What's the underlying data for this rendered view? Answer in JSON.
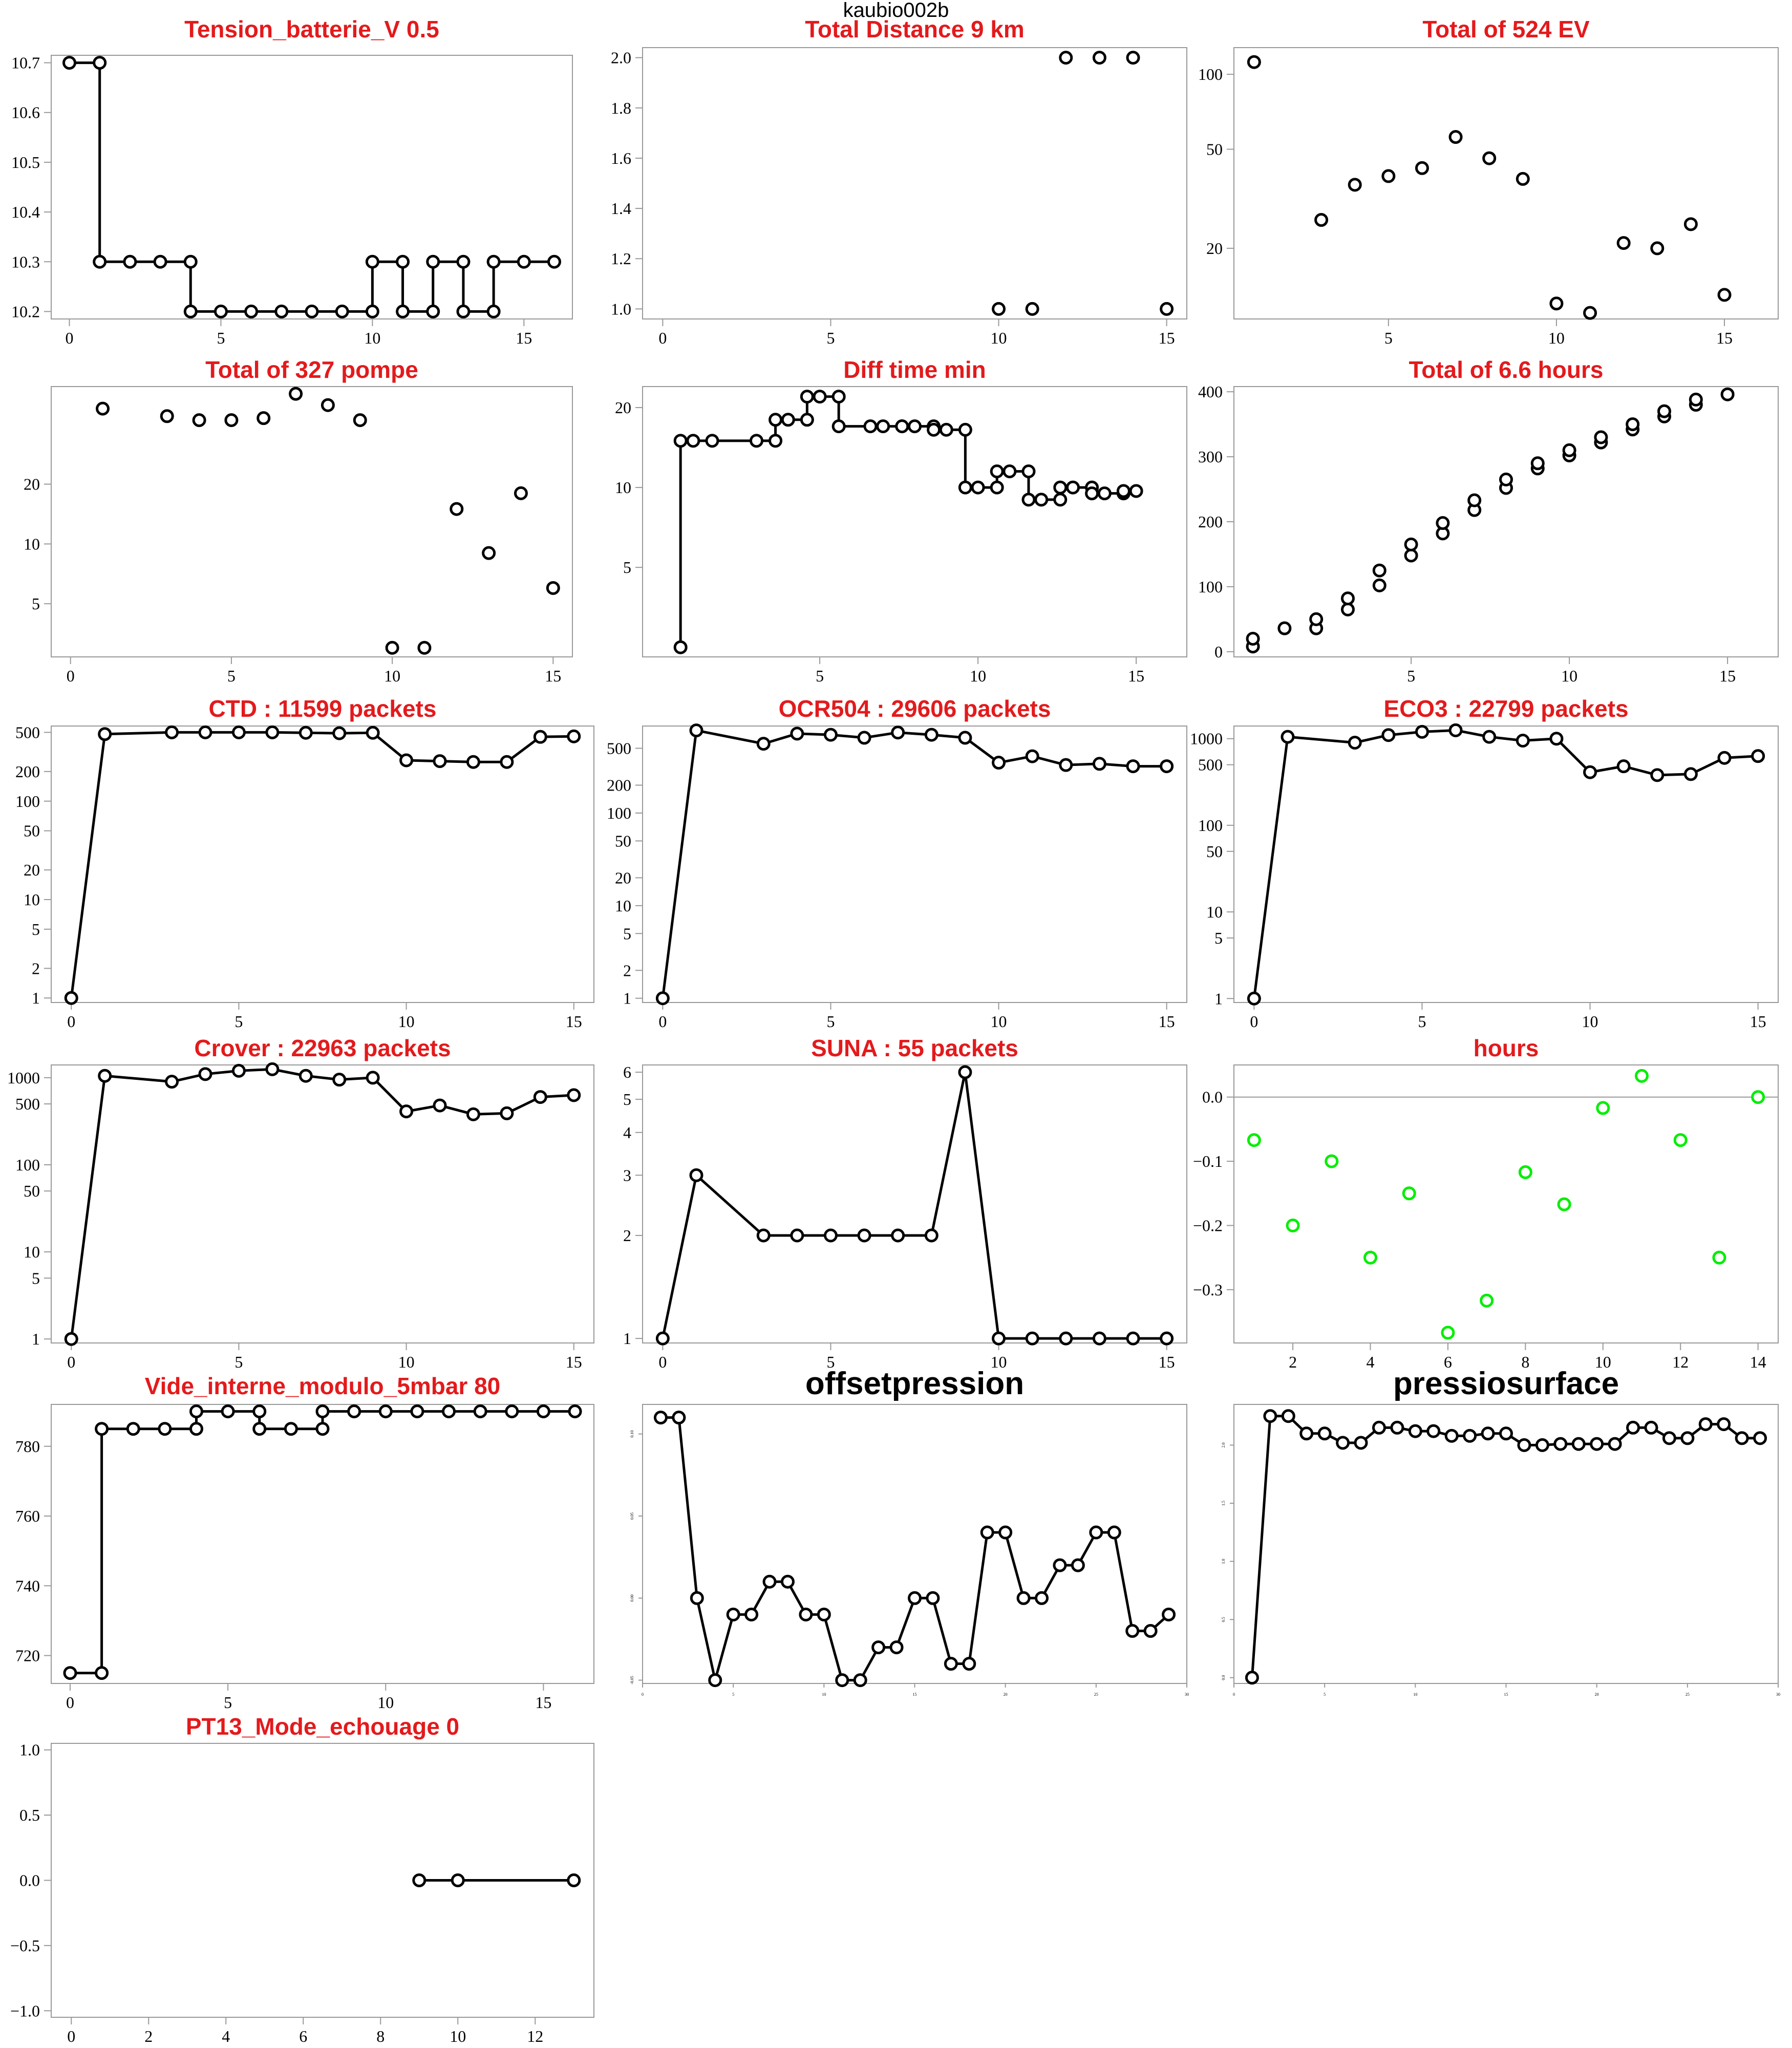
{
  "page": {
    "title": "kaubio002b"
  },
  "chart_data": [
    {
      "title": "Tension_batterie_V 0.5",
      "title_color": "#e31a1c",
      "type": "line",
      "line_style": "step",
      "x": [
        0,
        1,
        1,
        2,
        3,
        4,
        4,
        5,
        6,
        7,
        8,
        9,
        10,
        10,
        11,
        11,
        12,
        12,
        13,
        13,
        14,
        14,
        15,
        16
      ],
      "y": [
        10.7,
        10.7,
        10.3,
        10.3,
        10.3,
        10.3,
        10.2,
        10.2,
        10.2,
        10.2,
        10.2,
        10.2,
        10.2,
        10.3,
        10.3,
        10.2,
        10.2,
        10.3,
        10.3,
        10.2,
        10.2,
        10.3,
        10.3,
        10.3
      ],
      "xlim": [
        -0.6,
        16.6
      ],
      "ylim": [
        10.185,
        10.715
      ],
      "xticks": [
        0,
        5,
        10,
        15
      ],
      "yticks": [
        10.2,
        10.3,
        10.4,
        10.5,
        10.6,
        10.7
      ],
      "yticklabels": [
        "10.2",
        "10.3",
        "10.4",
        "10.5",
        "10.6",
        "10.7"
      ]
    },
    {
      "title": "Total Distance  9  km",
      "title_color": "#e31a1c",
      "type": "scatter",
      "x": [
        10,
        11,
        12,
        13,
        14,
        15
      ],
      "y": [
        1,
        1,
        2,
        2,
        2,
        1
      ],
      "xlim": [
        -0.6,
        15.6
      ],
      "ylim": [
        0.96,
        2.04
      ],
      "xticks": [
        0,
        5,
        10,
        15
      ],
      "yticks": [
        1.0,
        1.2,
        1.4,
        1.6,
        1.8,
        2.0
      ],
      "yticklabels": [
        "1.0",
        "1.2",
        "1.4",
        "1.6",
        "1.8",
        "2.0"
      ]
    },
    {
      "title": "Total of  524  EV",
      "title_color": "#e31a1c",
      "type": "scatter",
      "yscale": "log",
      "x": [
        1,
        3,
        4,
        5,
        6,
        7,
        8,
        9,
        10,
        11,
        12,
        13,
        14,
        15
      ],
      "y": [
        112,
        26,
        36,
        39,
        42,
        56,
        46,
        38,
        12,
        11,
        21,
        20,
        25,
        13
      ],
      "xlim": [
        0.4,
        16.6
      ],
      "ylim": [
        10.4,
        128
      ],
      "xticks": [
        5,
        10,
        15
      ],
      "yticks": [
        20,
        50,
        100
      ],
      "yticklabels": [
        "20",
        "50",
        "100"
      ]
    },
    {
      "title": "Total of  327  pompe",
      "title_color": "#e31a1c",
      "type": "scatter",
      "yscale": "log",
      "x": [
        1,
        3,
        4,
        5,
        6,
        7,
        8,
        9,
        10,
        11,
        12,
        13,
        14,
        15
      ],
      "y": [
        48,
        44,
        42,
        42,
        43,
        57,
        50,
        42,
        3,
        3,
        15,
        9,
        18,
        6
      ],
      "xlim": [
        -0.6,
        15.6
      ],
      "ylim": [
        2.7,
        62
      ],
      "xticks": [
        0,
        5,
        10,
        15
      ],
      "yticks": [
        5,
        10,
        20
      ],
      "yticklabels": [
        "5",
        "10",
        "20"
      ]
    },
    {
      "title": "Diff time min",
      "title_color": "#e31a1c",
      "type": "line",
      "line_style": "step",
      "yscale": "log",
      "x": [
        0.6,
        0.6,
        1,
        1.6,
        3,
        3.6,
        3.6,
        4,
        4.6,
        4.6,
        5,
        5.6,
        5.6,
        6.6,
        7,
        7.6,
        7.6,
        8,
        8.6,
        8.6,
        9,
        9.6,
        9.6,
        10,
        10.6,
        10.6,
        11,
        11.6,
        11.6,
        12,
        12.6,
        12.6,
        13,
        13.6,
        13.6,
        14,
        14.6,
        14.6,
        15
      ],
      "y": [
        2.5,
        15,
        15,
        15,
        15,
        15,
        18,
        18,
        18,
        22,
        22,
        22,
        17,
        17,
        17,
        17,
        17,
        17,
        17,
        16.5,
        16.5,
        16.5,
        10,
        10,
        10,
        11.5,
        11.5,
        11.5,
        9,
        9,
        9,
        10,
        10,
        10,
        9.5,
        9.5,
        9.5,
        9.7,
        9.7
      ],
      "xlim": [
        -0.6,
        16.6
      ],
      "ylim": [
        2.3,
        24
      ],
      "xticks": [
        5,
        10,
        15
      ],
      "yticks": [
        5,
        10,
        20
      ],
      "yticklabels": [
        "5",
        "10",
        "20"
      ]
    },
    {
      "title": "Total of  6.6  hours",
      "title_color": "#e31a1c",
      "type": "scatter",
      "x": [
        0,
        0,
        1,
        2,
        2,
        3,
        3,
        4,
        4,
        5,
        5,
        6,
        6,
        7,
        7,
        8,
        8,
        9,
        9,
        10,
        10,
        11,
        11,
        12,
        12,
        13,
        13,
        14,
        14,
        15
      ],
      "y": [
        8,
        20,
        36,
        36,
        50,
        65,
        82,
        102,
        125,
        148,
        165,
        182,
        198,
        218,
        233,
        252,
        265,
        282,
        290,
        302,
        310,
        322,
        330,
        342,
        350,
        362,
        370,
        380,
        388,
        396
      ],
      "xlim": [
        -0.6,
        16.6
      ],
      "ylim": [
        -8,
        408
      ],
      "xticks": [
        5,
        10,
        15
      ],
      "yticks": [
        0,
        100,
        200,
        300,
        400
      ],
      "yticklabels": [
        "0",
        "100",
        "200",
        "300",
        "400"
      ]
    },
    {
      "title": "CTD  : 11599  packets",
      "title_color": "#e31a1c",
      "type": "line",
      "yscale": "log",
      "x": [
        0,
        1,
        3,
        4,
        5,
        6,
        7,
        8,
        9,
        10,
        11,
        12,
        13,
        14,
        15
      ],
      "y": [
        1,
        480,
        500,
        500,
        500,
        500,
        495,
        490,
        495,
        260,
        255,
        250,
        250,
        450,
        455
      ],
      "xlim": [
        -0.6,
        15.6
      ],
      "ylim": [
        0.9,
        580
      ],
      "xticks": [
        0,
        5,
        10,
        15
      ],
      "yticks": [
        1,
        2,
        5,
        10,
        20,
        50,
        100,
        200,
        500
      ],
      "yticklabels": [
        "1",
        "2",
        "5",
        "10",
        "20",
        "50",
        "100",
        "200",
        "500"
      ]
    },
    {
      "title": "OCR504  : 29606  packets",
      "title_color": "#e31a1c",
      "type": "line",
      "yscale": "log",
      "x": [
        0,
        1,
        3,
        4,
        5,
        6,
        7,
        8,
        9,
        10,
        11,
        12,
        13,
        14,
        15
      ],
      "y": [
        1,
        780,
        560,
        720,
        700,
        650,
        740,
        700,
        650,
        350,
        410,
        330,
        340,
        320,
        320
      ],
      "xlim": [
        -0.6,
        15.6
      ],
      "ylim": [
        0.9,
        870
      ],
      "xticks": [
        0,
        5,
        10,
        15
      ],
      "yticks": [
        1,
        2,
        5,
        10,
        20,
        50,
        100,
        200,
        500
      ],
      "yticklabels": [
        "1",
        "2",
        "5",
        "10",
        "20",
        "50",
        "100",
        "200",
        "500"
      ]
    },
    {
      "title": "ECO3  : 22799  packets",
      "title_color": "#e31a1c",
      "type": "line",
      "yscale": "log",
      "x": [
        0,
        1,
        3,
        4,
        5,
        6,
        7,
        8,
        9,
        10,
        11,
        12,
        13,
        14,
        15
      ],
      "y": [
        1,
        1050,
        900,
        1100,
        1200,
        1250,
        1050,
        950,
        1000,
        410,
        480,
        380,
        390,
        600,
        630
      ],
      "xlim": [
        -0.6,
        15.6
      ],
      "ylim": [
        0.9,
        1400
      ],
      "xticks": [
        0,
        5,
        10,
        15
      ],
      "yticks": [
        1,
        5,
        10,
        50,
        100,
        500,
        1000
      ],
      "yticklabels": [
        "1",
        "5",
        "10",
        "50",
        "100",
        "500",
        "1000"
      ]
    },
    {
      "title": "Crover  : 22963  packets",
      "title_color": "#e31a1c",
      "type": "line",
      "yscale": "log",
      "x": [
        0,
        1,
        3,
        4,
        5,
        6,
        7,
        8,
        9,
        10,
        11,
        12,
        13,
        14,
        15
      ],
      "y": [
        1,
        1050,
        900,
        1100,
        1200,
        1250,
        1050,
        950,
        1000,
        410,
        480,
        380,
        390,
        600,
        630
      ],
      "xlim": [
        -0.6,
        15.6
      ],
      "ylim": [
        0.9,
        1400
      ],
      "xticks": [
        0,
        5,
        10,
        15
      ],
      "yticks": [
        1,
        5,
        10,
        50,
        100,
        500,
        1000
      ],
      "yticklabels": [
        "1",
        "5",
        "10",
        "50",
        "100",
        "500",
        "1000"
      ]
    },
    {
      "title": "SUNA  : 55  packets",
      "title_color": "#e31a1c",
      "type": "line",
      "yscale": "log",
      "x": [
        0,
        1,
        3,
        4,
        5,
        6,
        7,
        8,
        9,
        10,
        11,
        12,
        13,
        14,
        15
      ],
      "y": [
        1,
        3,
        2,
        2,
        2,
        2,
        2,
        2,
        6,
        1,
        1,
        1,
        1,
        1,
        1
      ],
      "xlim": [
        -0.6,
        15.6
      ],
      "ylim": [
        0.97,
        6.3
      ],
      "xticks": [
        0,
        5,
        10,
        15
      ],
      "yticks": [
        1,
        2,
        3,
        4,
        5,
        6
      ],
      "yticklabels": [
        "1",
        "2",
        "3",
        "4",
        "5",
        "6"
      ]
    },
    {
      "title": "hours",
      "title_color": "#e31a1c",
      "type": "scatter",
      "point_color": "#00ee00",
      "hline": 0,
      "x": [
        1,
        2,
        3,
        4,
        5,
        6,
        7,
        8,
        9,
        10,
        11,
        12,
        13,
        14
      ],
      "y": [
        -0.067,
        -0.2,
        -0.1,
        -0.25,
        -0.15,
        -0.367,
        -0.317,
        -0.117,
        -0.167,
        -0.017,
        0.033,
        -0.067,
        -0.25,
        0
      ],
      "xlim": [
        0.48,
        14.52
      ],
      "ylim": [
        -0.383,
        0.05
      ],
      "xticks": [
        2,
        4,
        6,
        8,
        10,
        12,
        14
      ],
      "yticks": [
        -0.3,
        -0.2,
        -0.1,
        0.0
      ],
      "yticklabels": [
        "−0.3",
        "−0.2",
        "−0.1",
        "0.0"
      ]
    },
    {
      "title": "Vide_interne_modulo_5mbar 80",
      "title_color": "#e31a1c",
      "type": "line",
      "line_style": "step",
      "x": [
        0,
        1,
        1,
        2,
        3,
        4,
        4,
        5,
        6,
        6,
        7,
        8,
        8,
        9,
        10,
        11,
        12,
        13,
        14,
        15,
        16
      ],
      "y": [
        715,
        715,
        785,
        785,
        785,
        785,
        790,
        790,
        790,
        785,
        785,
        785,
        790,
        790,
        790,
        790,
        790,
        790,
        790,
        790,
        790
      ],
      "xlim": [
        -0.6,
        16.6
      ],
      "ylim": [
        712,
        792
      ],
      "xticks": [
        0,
        5,
        10,
        15
      ],
      "yticks": [
        720,
        740,
        760,
        780
      ],
      "yticklabels": [
        "720",
        "740",
        "760",
        "780"
      ]
    },
    {
      "title": "offsetpression",
      "title_color": "#000000",
      "type": "line",
      "small_ticks": true,
      "x": [
        1,
        2,
        3,
        4,
        5,
        6,
        7,
        8,
        9,
        10,
        11,
        12,
        13,
        14,
        15,
        16,
        17,
        18,
        19,
        20,
        21,
        22,
        23,
        24,
        25,
        26,
        27,
        28,
        29
      ],
      "y": [
        0.11,
        0.11,
        0,
        -0.05,
        -0.01,
        -0.01,
        0.01,
        0.01,
        -0.01,
        -0.01,
        -0.05,
        -0.05,
        -0.03,
        -0.03,
        0,
        0,
        -0.04,
        -0.04,
        0.04,
        0.04,
        0,
        0,
        0.02,
        0.02,
        0.04,
        0.04,
        -0.02,
        -0.02,
        -0.01
      ],
      "xlim": [
        0,
        30
      ],
      "ylim": [
        -0.052,
        0.118
      ],
      "xticks": [
        0,
        5,
        10,
        15,
        20,
        25,
        30
      ],
      "yticks": [
        -0.05,
        0,
        0.05,
        0.1
      ],
      "yticklabels": [
        "-0.05",
        "0.00",
        "0.05",
        "0.10"
      ]
    },
    {
      "title": "pressiosurface",
      "title_color": "#000000",
      "type": "line",
      "small_ticks": true,
      "x": [
        1,
        2,
        3,
        4,
        5,
        6,
        7,
        8,
        9,
        10,
        11,
        12,
        13,
        14,
        15,
        16,
        17,
        18,
        19,
        20,
        21,
        22,
        23,
        24,
        25,
        26,
        27,
        28,
        29
      ],
      "y": [
        0,
        2.25,
        2.25,
        2.1,
        2.1,
        2.02,
        2.02,
        2.15,
        2.15,
        2.12,
        2.12,
        2.08,
        2.08,
        2.1,
        2.1,
        2.0,
        2.0,
        2.01,
        2.01,
        2.01,
        2.01,
        2.15,
        2.15,
        2.06,
        2.06,
        2.18,
        2.18,
        2.06,
        2.06
      ],
      "xlim": [
        0,
        30
      ],
      "ylim": [
        -0.05,
        2.35
      ],
      "xticks": [
        0,
        5,
        10,
        15,
        20,
        25,
        30
      ],
      "yticks": [
        0,
        0.5,
        1.0,
        1.5,
        2.0
      ],
      "yticklabels": [
        "0.0",
        "0.5",
        "1.0",
        "1.5",
        "2.0"
      ]
    },
    {
      "title": "PT13_Mode_echouage  0",
      "title_color": "#e31a1c",
      "type": "line",
      "x": [
        9,
        10,
        13
      ],
      "y": [
        0,
        0,
        0
      ],
      "xlim": [
        -0.52,
        13.52
      ],
      "ylim": [
        -1.05,
        1.05
      ],
      "xticks": [
        0,
        2,
        4,
        6,
        8,
        10,
        12
      ],
      "yticks": [
        -1.0,
        -0.5,
        0.0,
        0.5,
        1.0
      ],
      "yticklabels": [
        "−1.0",
        "−0.5",
        "0.0",
        "0.5",
        "1.0"
      ]
    }
  ]
}
